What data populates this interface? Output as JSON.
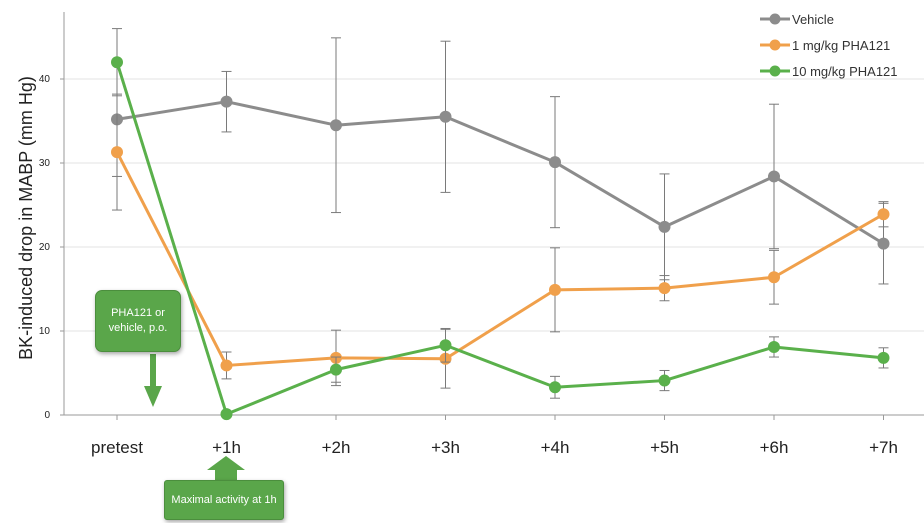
{
  "chart_data": {
    "type": "line",
    "title": "",
    "xlabel": "",
    "ylabel": "BK-induced drop in MABP (mm Hg)",
    "categories": [
      "pretest",
      "+1h",
      "+2h",
      "+3h",
      "+4h",
      "+5h",
      "+6h",
      "+7h"
    ],
    "ylim": [
      0,
      48
    ],
    "yticks": [
      "0",
      "10",
      "20",
      "30",
      "40"
    ],
    "grid": true,
    "legend_position": "top-right",
    "series": [
      {
        "name": "Vehicle",
        "color": "#8c8c8c",
        "values": [
          35.2,
          37.3,
          34.5,
          35.5,
          30.1,
          22.4,
          28.4,
          20.4
        ],
        "error": [
          6.8,
          3.6,
          10.4,
          9.0,
          7.8,
          6.3,
          8.6,
          4.8
        ]
      },
      {
        "name": "1 mg/kg PHA121",
        "color": "#f0a04b",
        "values": [
          31.3,
          5.9,
          6.8,
          6.7,
          14.9,
          15.1,
          16.4,
          23.9
        ],
        "error": [
          6.9,
          1.6,
          3.3,
          3.5,
          5.0,
          1.5,
          3.2,
          1.5
        ]
      },
      {
        "name": "10 mg/kg PHA121",
        "color": "#5ab04b",
        "values": [
          42.0,
          0.1,
          5.4,
          8.3,
          3.3,
          4.1,
          8.1,
          6.8
        ],
        "error": [
          4.0,
          0.3,
          1.5,
          2.0,
          1.3,
          1.2,
          1.2,
          1.2
        ]
      }
    ]
  },
  "annotations": {
    "dose_label": "PHA121 or vehicle, p.o.",
    "max_label": "Maximal activity at 1h"
  }
}
